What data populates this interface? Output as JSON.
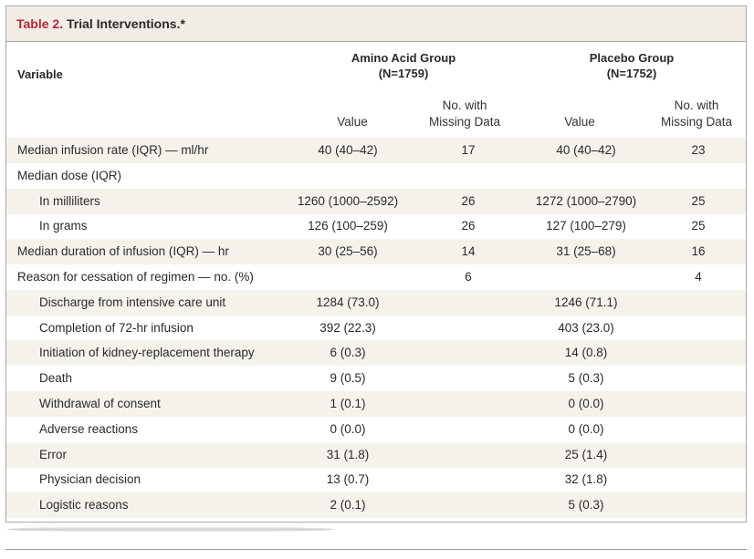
{
  "table": {
    "title_number": "Table 2.",
    "title_text": " Trial Interventions.*",
    "variable_header": "Variable",
    "groups": [
      {
        "name": "Amino Acid Group",
        "n": "(N=1759)"
      },
      {
        "name": "Placebo Group",
        "n": "(N=1752)"
      }
    ],
    "subheaders": {
      "value": "Value",
      "missing_line1": "No. with",
      "missing_line2": "Missing Data"
    },
    "rows": [
      {
        "label": "Median infusion rate (IQR) — ml/hr",
        "indent": false,
        "aa_value": "40 (40–42)",
        "aa_missing": "17",
        "pl_value": "40 (40–42)",
        "pl_missing": "23"
      },
      {
        "label": "Median dose (IQR)",
        "indent": false,
        "aa_value": "",
        "aa_missing": "",
        "pl_value": "",
        "pl_missing": ""
      },
      {
        "label": "In milliliters",
        "indent": true,
        "aa_value": "1260 (1000–2592)",
        "aa_missing": "26",
        "pl_value": "1272 (1000–2790)",
        "pl_missing": "25"
      },
      {
        "label": "In grams",
        "indent": true,
        "aa_value": "126 (100–259)",
        "aa_missing": "26",
        "pl_value": "127 (100–279)",
        "pl_missing": "25"
      },
      {
        "label": "Median duration of infusion (IQR) — hr",
        "indent": false,
        "aa_value": "30 (25–56)",
        "aa_missing": "14",
        "pl_value": "31 (25–68)",
        "pl_missing": "16"
      },
      {
        "label": "Reason for cessation of regimen — no. (%)",
        "indent": false,
        "aa_value": "",
        "aa_missing": "6",
        "pl_value": "",
        "pl_missing": "4"
      },
      {
        "label": "Discharge from intensive care unit",
        "indent": true,
        "aa_value": "1284 (73.0)",
        "aa_missing": "",
        "pl_value": "1246 (71.1)",
        "pl_missing": ""
      },
      {
        "label": "Completion of 72-hr infusion",
        "indent": true,
        "aa_value": "392 (22.3)",
        "aa_missing": "",
        "pl_value": "403 (23.0)",
        "pl_missing": ""
      },
      {
        "label": "Initiation of kidney-replacement therapy",
        "indent": true,
        "aa_value": "6 (0.3)",
        "aa_missing": "",
        "pl_value": "14 (0.8)",
        "pl_missing": ""
      },
      {
        "label": "Death",
        "indent": true,
        "aa_value": "9 (0.5)",
        "aa_missing": "",
        "pl_value": "5 (0.3)",
        "pl_missing": ""
      },
      {
        "label": "Withdrawal of consent",
        "indent": true,
        "aa_value": "1 (0.1)",
        "aa_missing": "",
        "pl_value": "0 (0.0)",
        "pl_missing": ""
      },
      {
        "label": "Adverse reactions",
        "indent": true,
        "aa_value": "0 (0.0)",
        "aa_missing": "",
        "pl_value": "0 (0.0)",
        "pl_missing": ""
      },
      {
        "label": "Error",
        "indent": true,
        "aa_value": "31 (1.8)",
        "aa_missing": "",
        "pl_value": "25 (1.4)",
        "pl_missing": ""
      },
      {
        "label": "Physician decision",
        "indent": true,
        "aa_value": "13 (0.7)",
        "aa_missing": "",
        "pl_value": "32 (1.8)",
        "pl_missing": ""
      },
      {
        "label": "Logistic reasons",
        "indent": true,
        "aa_value": "2 (0.1)",
        "aa_missing": "",
        "pl_value": "5 (0.3)",
        "pl_missing": ""
      }
    ]
  }
}
